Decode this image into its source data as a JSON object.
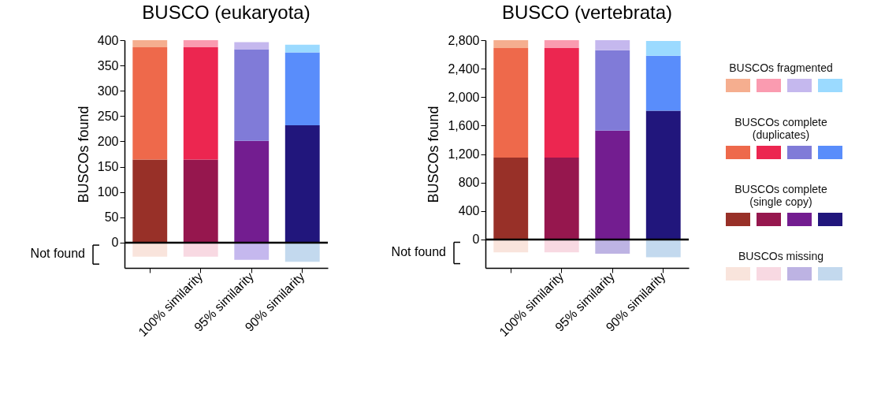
{
  "chart_data": [
    {
      "type": "bar",
      "title": "BUSCO (eukaryota)",
      "ylabel": "BUSCOs found",
      "categories": [
        null,
        "100% similarity",
        "95% similarity",
        "90% similarity"
      ],
      "stacked": true,
      "grid": false,
      "legend": false,
      "series": [
        {
          "colors": [
            "#983028",
            "#96174e",
            "#731d90",
            "#21167c"
          ],
          "values": [
            164,
            164,
            201,
            232
          ]
        },
        {
          "colors": [
            "#ee694b",
            "#ec2650",
            "#807bd8",
            "#598dfb"
          ],
          "values": [
            222,
            222,
            181,
            144
          ]
        },
        {
          "colors": [
            "#f5ae8f",
            "#fa9bb0",
            "#c5b8ee",
            "#9bdaff"
          ],
          "values": [
            14,
            14,
            14,
            15
          ]
        },
        {
          "colors": [
            "#f9e4dc",
            "#f8d9e2",
            "#c5b8ee",
            "#c3d9ee"
          ],
          "values": [
            -28,
            -28,
            -34,
            -38
          ]
        }
      ],
      "ylim": [
        -50,
        400
      ],
      "yticks": [
        0,
        50,
        100,
        150,
        200,
        250,
        300,
        350,
        400
      ],
      "ref_lines": [
        {
          "axis": "y",
          "value": 0
        }
      ],
      "annotations": [
        "Not found"
      ]
    },
    {
      "type": "bar",
      "title": "BUSCO (vertebrata)",
      "ylabel": "BUSCOs found",
      "categories": [
        null,
        "100% similarity",
        "95% similarity",
        "90% similarity"
      ],
      "stacked": true,
      "grid": false,
      "legend": "right",
      "series": [
        {
          "name": "BUSCOs complete (single copy)",
          "colors": [
            "#983028",
            "#96174e",
            "#731d90",
            "#21167c"
          ],
          "values": [
            1150,
            1150,
            1530,
            1810
          ]
        },
        {
          "name": "BUSCOs complete (duplicates)",
          "colors": [
            "#ee694b",
            "#ec2650",
            "#807bd8",
            "#598dfb"
          ],
          "values": [
            1540,
            1540,
            1130,
            770
          ]
        },
        {
          "name": "BUSCOs fragmented",
          "colors": [
            "#f5ae8f",
            "#fa9bb0",
            "#c5b8ee",
            "#9bdaff"
          ],
          "values": [
            110,
            110,
            140,
            210
          ]
        },
        {
          "name": "BUSCOs missing",
          "colors": [
            "#f9e4dc",
            "#f8d9e2",
            "#bdb3e3",
            "#c3d9ee"
          ],
          "values": [
            -180,
            -180,
            -200,
            -250
          ]
        }
      ],
      "ylim": [
        -400,
        2800
      ],
      "yticks": [
        0,
        400,
        800,
        {
          "value": 1200,
          "label": "1,200"
        },
        {
          "value": 1600,
          "label": "1,600"
        },
        {
          "value": 2000,
          "label": "2,000"
        },
        {
          "value": 2400,
          "label": "2,400"
        },
        {
          "value": 2800,
          "label": "2,800"
        }
      ],
      "ref_lines": [
        {
          "axis": "y",
          "value": 0
        }
      ],
      "annotations": [
        "Not found"
      ]
    }
  ]
}
